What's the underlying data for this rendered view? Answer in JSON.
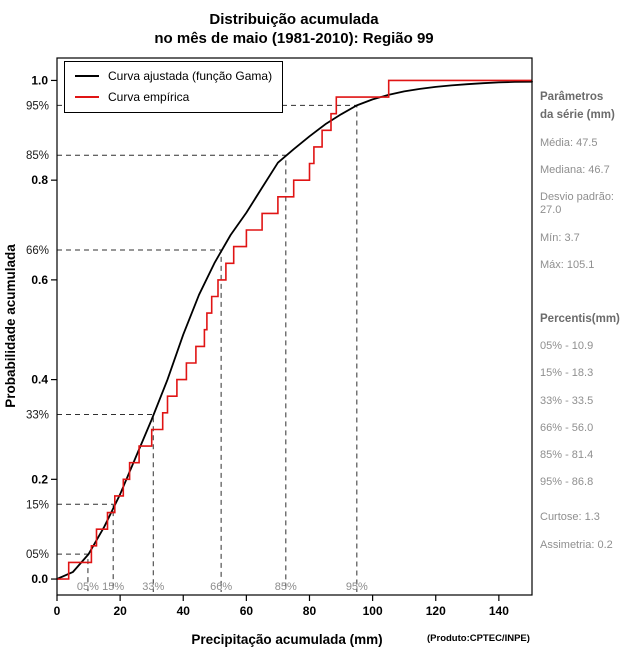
{
  "title": {
    "line1": "Distribuição acumulada",
    "line2": "no mês de maio (1981-2010): Região 99"
  },
  "legend": {
    "gamma": "Curva ajustada (função Gama)",
    "empirical": "Curva empírica"
  },
  "axes": {
    "x_label": "Precipitação acumulada (mm)",
    "x_note": "(Produto:CPTEC/INPE)",
    "y_label": "Probabilidade acumulada"
  },
  "sidebar": {
    "params_title_line1": "Parâmetros",
    "params_title_line2": "da série (mm)",
    "params": [
      "Média: 47.5",
      "Mediana: 46.7",
      "Desvio padrão: 27.0",
      "Mín: 3.7",
      "Máx: 105.1"
    ],
    "percentis_title": "Percentis(mm)",
    "percentis": [
      "05% - 10.9",
      "15% - 18.3",
      "33% - 33.5",
      "66% - 56.0",
      "85% - 81.4",
      "95% - 86.8"
    ],
    "stats": [
      "Curtose: 1.3",
      "Assimetria: 0.2"
    ]
  },
  "chart_data": {
    "type": "line",
    "title": "Distribuição acumulada no mês de maio (1981-2010): Região 99",
    "xlabel": "Precipitação acumulada (mm)",
    "ylabel": "Probabilidade acumulada",
    "xlim": [
      0,
      150.5
    ],
    "ylim": [
      0,
      1.04
    ],
    "x_ticks": [
      0,
      20,
      40,
      60,
      80,
      100,
      120,
      140
    ],
    "y_ticks": [
      0.0,
      0.2,
      0.4,
      0.6,
      0.8,
      1.0
    ],
    "grid": false,
    "legend_position": "top-left",
    "colors": {
      "gamma": "#000000",
      "empirical": "#e01414",
      "dashed": "#303030",
      "grid_label": "#8c8c8c"
    },
    "quantile_labels": [
      "05%",
      "15%",
      "33%",
      "66%",
      "85%",
      "95%"
    ],
    "quantile_probs": [
      0.05,
      0.15,
      0.33,
      0.66,
      0.85,
      0.95
    ],
    "quantile_x_fitted": [
      9.8,
      17.8,
      30.5,
      52,
      72.5,
      95
    ],
    "percentile_values_mm": [
      10.9,
      18.3,
      33.5,
      56.0,
      81.4,
      86.8
    ],
    "stats": {
      "media": 47.5,
      "mediana": 46.7,
      "desvio_padrao": 27.0,
      "min": 3.7,
      "max": 105.1,
      "curtose": 1.3,
      "assimetria": 0.2
    },
    "series": [
      {
        "name": "Curva ajustada (função Gama)",
        "type": "smooth",
        "x": [
          0,
          5,
          10,
          15,
          20,
          25,
          30,
          35,
          40,
          45,
          50,
          55,
          60,
          65,
          70,
          75,
          80,
          85,
          90,
          95,
          100,
          105,
          110,
          115,
          120,
          125,
          130,
          135,
          140,
          145,
          150.5
        ],
        "y": [
          0,
          0.014,
          0.05,
          0.105,
          0.17,
          0.245,
          0.32,
          0.4,
          0.49,
          0.57,
          0.635,
          0.69,
          0.735,
          0.785,
          0.835,
          0.862,
          0.888,
          0.912,
          0.932,
          0.95,
          0.962,
          0.971,
          0.978,
          0.983,
          0.987,
          0.99,
          0.9925,
          0.9945,
          0.996,
          0.997,
          0.9975
        ]
      },
      {
        "name": "Curva empírica",
        "type": "step",
        "values": [
          3.7,
          10.9,
          12.5,
          16,
          18.3,
          21,
          23,
          26,
          30,
          33.5,
          35,
          38,
          41,
          44,
          46.7,
          47.5,
          49,
          51,
          53.5,
          56,
          60,
          65,
          70,
          75,
          80,
          81.4,
          84,
          86.8,
          88.5,
          105.1
        ]
      }
    ]
  }
}
